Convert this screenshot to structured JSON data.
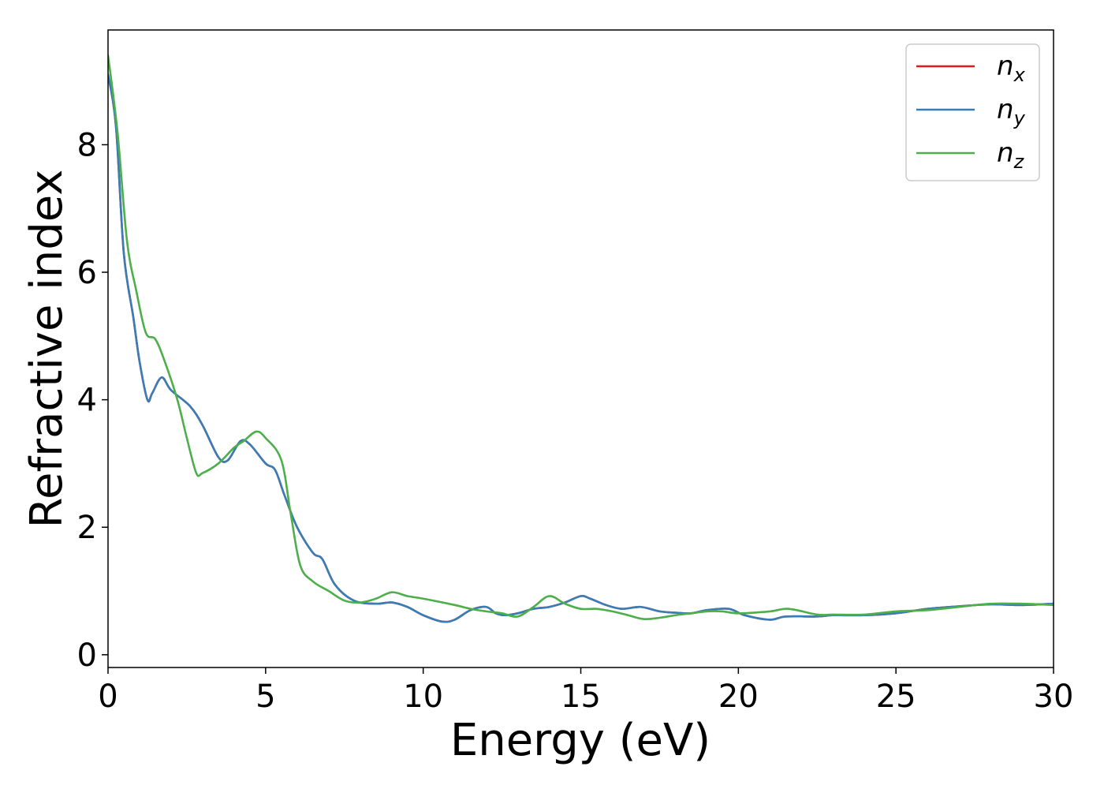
{
  "chart_data": {
    "type": "line",
    "title": "",
    "xlabel": "Energy (eV)",
    "ylabel": "Refractive index",
    "xlim": [
      0,
      30
    ],
    "ylim": [
      -0.2,
      9.8
    ],
    "xticks": [
      "0",
      "5",
      "10",
      "15",
      "20",
      "25",
      "30"
    ],
    "yticks": [
      "0",
      "2",
      "4",
      "6",
      "8"
    ],
    "grid": false,
    "legend": "top-right",
    "series": [
      {
        "name": "n_x",
        "main": "n",
        "sub": "x",
        "color": "#e41a1c",
        "x": [
          0,
          0.25,
          0.5,
          0.8,
          1.0,
          1.25,
          1.4,
          1.7,
          2.0,
          2.6,
          3.0,
          3.5,
          3.8,
          4.2,
          4.5,
          5.0,
          5.3,
          5.6,
          6.0,
          6.5,
          6.8,
          7.2,
          7.8,
          8.5,
          9.0,
          9.5,
          10.0,
          10.6,
          11.0,
          11.5,
          12.0,
          12.3,
          12.6,
          13.0,
          13.5,
          14.0,
          14.5,
          15.0,
          15.3,
          15.8,
          16.3,
          16.9,
          17.5,
          18.0,
          18.5,
          19.0,
          19.7,
          20.2,
          21.0,
          21.5,
          22.5,
          23.0,
          24.0,
          25.0,
          26.0,
          27.0,
          28.0,
          29.0,
          30.0
        ],
        "y": [
          9.1,
          8.3,
          6.3,
          5.3,
          4.6,
          4.0,
          4.1,
          4.35,
          4.15,
          3.9,
          3.6,
          3.1,
          3.05,
          3.35,
          3.3,
          3.0,
          2.9,
          2.5,
          2.0,
          1.6,
          1.5,
          1.1,
          0.85,
          0.8,
          0.82,
          0.75,
          0.62,
          0.52,
          0.55,
          0.7,
          0.75,
          0.65,
          0.62,
          0.65,
          0.72,
          0.75,
          0.82,
          0.92,
          0.88,
          0.78,
          0.72,
          0.75,
          0.68,
          0.66,
          0.65,
          0.7,
          0.72,
          0.62,
          0.55,
          0.6,
          0.6,
          0.62,
          0.62,
          0.65,
          0.72,
          0.76,
          0.79,
          0.78,
          0.8
        ]
      },
      {
        "name": "n_y",
        "main": "n",
        "sub": "y",
        "color": "#377eb8",
        "x": [
          0,
          0.25,
          0.5,
          0.8,
          1.0,
          1.25,
          1.4,
          1.7,
          2.0,
          2.6,
          3.0,
          3.5,
          3.8,
          4.2,
          4.5,
          5.0,
          5.3,
          5.6,
          6.0,
          6.5,
          6.8,
          7.2,
          7.8,
          8.5,
          9.0,
          9.5,
          10.0,
          10.6,
          11.0,
          11.5,
          12.0,
          12.3,
          12.6,
          13.0,
          13.5,
          14.0,
          14.5,
          15.0,
          15.3,
          15.8,
          16.3,
          16.9,
          17.5,
          18.0,
          18.5,
          19.0,
          19.7,
          20.2,
          21.0,
          21.5,
          22.5,
          23.0,
          24.0,
          25.0,
          26.0,
          27.0,
          28.0,
          29.0,
          30.0
        ],
        "y": [
          9.1,
          8.3,
          6.3,
          5.3,
          4.6,
          4.0,
          4.1,
          4.35,
          4.15,
          3.9,
          3.6,
          3.1,
          3.05,
          3.35,
          3.3,
          3.0,
          2.9,
          2.5,
          2.0,
          1.6,
          1.5,
          1.1,
          0.85,
          0.8,
          0.82,
          0.75,
          0.62,
          0.52,
          0.55,
          0.7,
          0.75,
          0.65,
          0.62,
          0.65,
          0.72,
          0.75,
          0.82,
          0.92,
          0.88,
          0.78,
          0.72,
          0.75,
          0.68,
          0.66,
          0.65,
          0.7,
          0.72,
          0.62,
          0.55,
          0.6,
          0.6,
          0.62,
          0.62,
          0.65,
          0.72,
          0.76,
          0.79,
          0.78,
          0.8
        ]
      },
      {
        "name": "n_z",
        "main": "n",
        "sub": "z",
        "color": "#4daf4a",
        "x": [
          0,
          0.3,
          0.6,
          0.9,
          1.2,
          1.5,
          1.8,
          2.2,
          2.5,
          2.8,
          3.0,
          3.5,
          4.0,
          4.3,
          4.7,
          5.0,
          5.5,
          5.8,
          6.1,
          6.5,
          7.0,
          7.5,
          8.0,
          8.5,
          9.0,
          9.5,
          10.0,
          11.0,
          11.5,
          12.0,
          12.5,
          13.0,
          13.5,
          14.0,
          14.5,
          15.0,
          15.5,
          16.0,
          16.5,
          17.0,
          17.5,
          18.0,
          18.5,
          19.0,
          19.5,
          20.0,
          21.0,
          21.6,
          22.5,
          23.0,
          24.0,
          25.0,
          26.0,
          27.0,
          28.0,
          29.0,
          30.0
        ],
        "y": [
          9.4,
          8.2,
          6.5,
          5.7,
          5.05,
          4.95,
          4.6,
          4.0,
          3.4,
          2.85,
          2.85,
          3.0,
          3.25,
          3.35,
          3.5,
          3.4,
          3.05,
          2.2,
          1.4,
          1.15,
          1.0,
          0.85,
          0.82,
          0.88,
          0.98,
          0.92,
          0.88,
          0.78,
          0.72,
          0.68,
          0.65,
          0.6,
          0.75,
          0.92,
          0.8,
          0.72,
          0.72,
          0.68,
          0.62,
          0.56,
          0.58,
          0.62,
          0.65,
          0.68,
          0.68,
          0.65,
          0.68,
          0.72,
          0.63,
          0.63,
          0.63,
          0.68,
          0.7,
          0.75,
          0.8,
          0.8,
          0.78
        ]
      }
    ]
  }
}
